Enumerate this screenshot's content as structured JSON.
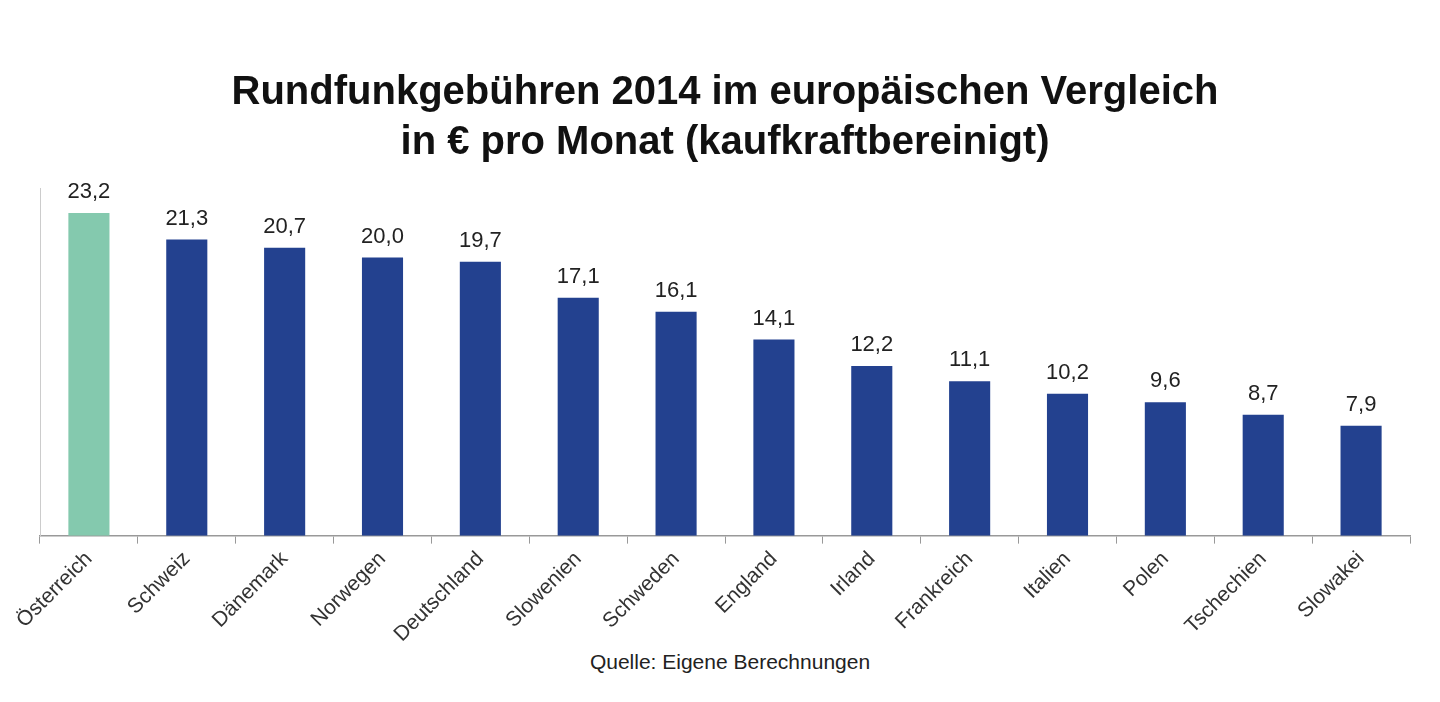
{
  "chart_data": {
    "type": "bar",
    "title": "Rundfunkgebühren 2014 im europäischen Vergleich",
    "subtitle": "in € pro Monat (kaufkraftbereinigt)",
    "source": "Quelle: Eigene Berechnungen",
    "categories": [
      "Österreich",
      "Schweiz",
      "Dänemark",
      "Norwegen",
      "Deutschland",
      "Slowenien",
      "Schweden",
      "England",
      "Irland",
      "Frankreich",
      "Italien",
      "Polen",
      "Tschechien",
      "Slowakei"
    ],
    "values": [
      23.2,
      21.3,
      20.7,
      20.0,
      19.7,
      17.1,
      16.1,
      14.1,
      12.2,
      11.1,
      10.2,
      9.6,
      8.7,
      7.9
    ],
    "value_labels": [
      "23,2",
      "21,3",
      "20,7",
      "20,0",
      "19,7",
      "17,1",
      "16,1",
      "14,1",
      "12,2",
      "11,1",
      "10,2",
      "9,6",
      "8,7",
      "7,9"
    ],
    "colors": [
      "#84c9ae",
      "#23418f",
      "#23418f",
      "#23418f",
      "#23418f",
      "#23418f",
      "#23418f",
      "#23418f",
      "#23418f",
      "#23418f",
      "#23418f",
      "#23418f",
      "#23418f",
      "#23418f"
    ],
    "ylim": [
      0,
      25
    ],
    "grid": false,
    "data_labels": true,
    "tick_labels": "x"
  }
}
